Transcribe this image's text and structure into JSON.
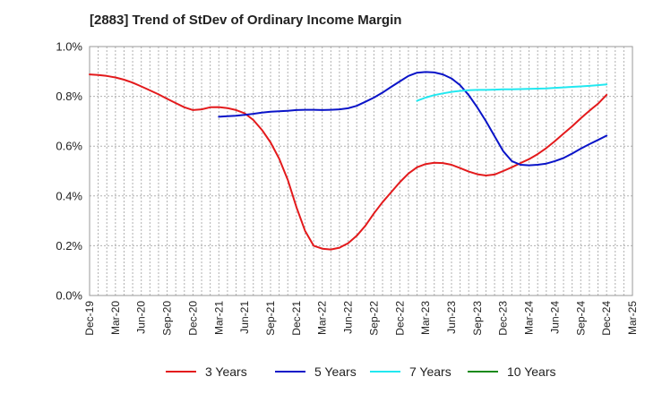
{
  "chart_data": {
    "type": "line",
    "title": "[2883]  Trend of StDev of Ordinary Income Margin",
    "xlabel": "",
    "ylabel": "",
    "ylim": [
      0,
      1.0
    ],
    "y_ticks": [
      "0.0%",
      "0.2%",
      "0.4%",
      "0.6%",
      "0.8%",
      "1.0%"
    ],
    "y_tick_values": [
      0,
      0.2,
      0.4,
      0.6,
      0.8,
      1.0
    ],
    "x_ticks": [
      "Dec-19",
      "Mar-20",
      "Jun-20",
      "Sep-20",
      "Dec-20",
      "Mar-21",
      "Jun-21",
      "Sep-21",
      "Dec-21",
      "Mar-22",
      "Jun-22",
      "Sep-22",
      "Dec-22",
      "Mar-23",
      "Jun-23",
      "Sep-23",
      "Dec-23",
      "Mar-24",
      "Jun-24",
      "Sep-24",
      "Dec-24",
      "Mar-25"
    ],
    "grid": true,
    "legend_position": "bottom",
    "series": [
      {
        "name": "3 Years",
        "color": "#e31a1c",
        "x": [
          "Dec-19",
          "Jan-20",
          "Feb-20",
          "Mar-20",
          "Apr-20",
          "May-20",
          "Jun-20",
          "Jul-20",
          "Aug-20",
          "Sep-20",
          "Oct-20",
          "Nov-20",
          "Dec-20",
          "Jan-21",
          "Feb-21",
          "Mar-21",
          "Apr-21",
          "May-21",
          "Jun-21",
          "Jul-21",
          "Aug-21",
          "Sep-21",
          "Oct-21",
          "Nov-21",
          "Dec-21",
          "Jan-22",
          "Feb-22",
          "Mar-22",
          "Apr-22",
          "May-22",
          "Jun-22",
          "Jul-22",
          "Aug-22",
          "Sep-22",
          "Oct-22",
          "Nov-22",
          "Dec-22",
          "Jan-23",
          "Feb-23",
          "Mar-23",
          "Apr-23",
          "May-23",
          "Jun-23",
          "Jul-23",
          "Aug-23",
          "Sep-23",
          "Oct-23",
          "Nov-23",
          "Dec-23",
          "Jan-24",
          "Feb-24",
          "Mar-24",
          "Apr-24",
          "May-24",
          "Jun-24",
          "Jul-24",
          "Aug-24",
          "Sep-24",
          "Oct-24",
          "Nov-24",
          "Dec-24"
        ],
        "values": [
          0.888,
          0.886,
          0.882,
          0.876,
          0.867,
          0.855,
          0.84,
          0.824,
          0.808,
          0.79,
          0.773,
          0.756,
          0.745,
          0.748,
          0.756,
          0.757,
          0.753,
          0.745,
          0.732,
          0.705,
          0.665,
          0.615,
          0.55,
          0.465,
          0.355,
          0.26,
          0.2,
          0.188,
          0.185,
          0.192,
          0.21,
          0.24,
          0.28,
          0.33,
          0.375,
          0.415,
          0.455,
          0.49,
          0.515,
          0.528,
          0.533,
          0.532,
          0.525,
          0.512,
          0.498,
          0.487,
          0.482,
          0.486,
          0.5,
          0.515,
          0.532,
          0.548,
          0.568,
          0.592,
          0.62,
          0.65,
          0.68,
          0.712,
          0.742,
          0.77,
          0.806
        ]
      },
      {
        "name": "5 Years",
        "color": "#0a14c8",
        "x": [
          "Dec-20",
          "Jan-21",
          "Feb-21",
          "Mar-21",
          "Apr-21",
          "May-21",
          "Jun-21",
          "Jul-21",
          "Aug-21",
          "Sep-21",
          "Oct-21",
          "Nov-21",
          "Dec-21",
          "Jan-22",
          "Feb-22",
          "Mar-22",
          "Apr-22",
          "May-22",
          "Jun-22",
          "Jul-22",
          "Aug-22",
          "Sep-22",
          "Oct-22",
          "Nov-22",
          "Dec-22",
          "Jan-23",
          "Feb-23",
          "Mar-23",
          "Apr-23",
          "May-23",
          "Jun-23",
          "Jul-23",
          "Aug-23",
          "Sep-23",
          "Oct-23",
          "Nov-23",
          "Dec-23",
          "Jan-24",
          "Feb-24",
          "Mar-24",
          "Apr-24",
          "May-24",
          "Jun-24",
          "Jul-24",
          "Aug-24",
          "Sep-24",
          "Oct-24",
          "Nov-24",
          "Dec-24"
        ],
        "values": [
          null,
          null,
          null,
          0.718,
          0.72,
          0.722,
          0.726,
          0.73,
          0.735,
          0.738,
          0.74,
          0.742,
          0.745,
          0.746,
          0.746,
          0.745,
          0.746,
          0.748,
          0.752,
          0.762,
          0.778,
          0.795,
          0.815,
          0.838,
          0.86,
          0.882,
          0.895,
          0.898,
          0.896,
          0.888,
          0.872,
          0.845,
          0.805,
          0.755,
          0.7,
          0.64,
          0.58,
          0.54,
          0.525,
          0.523,
          0.525,
          0.53,
          0.54,
          0.552,
          0.57,
          0.59,
          0.608,
          0.625,
          0.642
        ]
      },
      {
        "name": "7 Years",
        "color": "#22e8f0",
        "x": [
          "Dec-22",
          "Jan-23",
          "Feb-23",
          "Mar-23",
          "Apr-23",
          "May-23",
          "Jun-23",
          "Jul-23",
          "Aug-23",
          "Sep-23",
          "Oct-23",
          "Nov-23",
          "Dec-23",
          "Jan-24",
          "Feb-24",
          "Mar-24",
          "Apr-24",
          "May-24",
          "Jun-24",
          "Jul-24",
          "Aug-24",
          "Sep-24",
          "Oct-24",
          "Nov-24",
          "Dec-24"
        ],
        "values": [
          null,
          null,
          0.782,
          0.795,
          0.805,
          0.812,
          0.818,
          0.822,
          0.825,
          0.826,
          0.826,
          0.827,
          0.828,
          0.828,
          0.829,
          0.83,
          0.831,
          0.832,
          0.834,
          0.836,
          0.838,
          0.84,
          0.842,
          0.845,
          0.848
        ]
      },
      {
        "name": "10 Years",
        "color": "#1a8a1a",
        "x": [],
        "values": []
      }
    ]
  }
}
